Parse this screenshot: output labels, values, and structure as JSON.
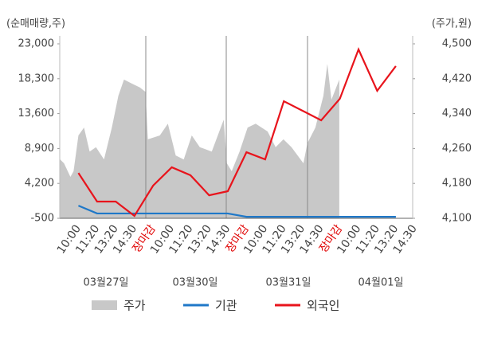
{
  "chart_data": {
    "type": "line",
    "y_axis_label": "(순매매량,주)",
    "y2_axis_label": "(주가,원)",
    "categories": [
      "10:00",
      "11:20",
      "13:20",
      "14:30",
      "장마감",
      "10:00",
      "11:20",
      "13:20",
      "14:30",
      "장마감",
      "10:00",
      "11:20",
      "13:20",
      "14:30",
      "장마감",
      "10:00",
      "11:20",
      "13:20",
      "14:30"
    ],
    "day_labels": [
      "03월27일",
      "03월30일",
      "03월31일",
      "04월01일"
    ],
    "highlight_label": "장마감",
    "highlight_color": "#e00000",
    "xlim": [
      -1,
      17.9
    ],
    "ylim": [
      -500,
      23000
    ],
    "yticks": [
      {
        "value": -500,
        "label": "-500"
      },
      {
        "value": 4200,
        "label": "4,200"
      },
      {
        "value": 8900,
        "label": "8,900"
      },
      {
        "value": 13600,
        "label": "13,600"
      },
      {
        "value": 18300,
        "label": "18,300"
      },
      {
        "value": 23000,
        "label": "23,000"
      }
    ],
    "y2lim": [
      4100,
      4500
    ],
    "y2ticks": [
      {
        "value": 4100,
        "label": "4,100"
      },
      {
        "value": 4180,
        "label": "4,180"
      },
      {
        "value": 4260,
        "label": "4,260"
      },
      {
        "value": 4340,
        "label": "4,340"
      },
      {
        "value": 4420,
        "label": "4,420"
      },
      {
        "value": 4500,
        "label": "4,500"
      }
    ],
    "series": [
      {
        "name": "주가",
        "type": "area",
        "axis": "y2",
        "color": "#c8c8c8",
        "x": [
          -0.98,
          -0.77,
          -0.43,
          -0.26,
          0,
          0.3,
          0.6,
          0.94,
          1.37,
          1.79,
          2.14,
          2.44,
          2.86,
          3.29,
          3.59,
          3.72,
          4.36,
          4.79,
          5.21,
          5.64,
          6.07,
          6.5,
          7.14,
          7.78,
          7.95,
          8.21,
          8.63,
          9.06,
          9.49,
          10.13,
          10.56,
          10.98,
          11.41,
          12.05,
          12.26,
          12.69,
          13.12,
          13.33,
          13.55,
          13.97
        ],
        "values": [
          4235,
          4226,
          4195,
          4208,
          4290,
          4308,
          4253,
          4263,
          4235,
          4308,
          4381,
          4418,
          4409,
          4400,
          4390,
          4281,
          4290,
          4317,
          4244,
          4235,
          4290,
          4263,
          4253,
          4326,
          4226,
          4208,
          4253,
          4308,
          4317,
          4299,
          4263,
          4281,
          4263,
          4226,
          4272,
          4308,
          4381,
          4454,
          4372,
          4418
        ]
      },
      {
        "name": "기관",
        "type": "line",
        "color": "#1f78c8",
        "values": [
          1200,
          150,
          150,
          150,
          150,
          150,
          150,
          150,
          150,
          -300,
          -300,
          -300,
          -300,
          -300,
          -300,
          -300,
          -300,
          -300,
          null
        ]
      },
      {
        "name": "외국인",
        "type": "line",
        "color": "#e8141c",
        "values": [
          5600,
          1750,
          1750,
          -180,
          3900,
          6370,
          5300,
          2600,
          3150,
          8400,
          7440,
          15270,
          13990,
          12700,
          15600,
          22250,
          16670,
          20000,
          null
        ]
      }
    ]
  }
}
